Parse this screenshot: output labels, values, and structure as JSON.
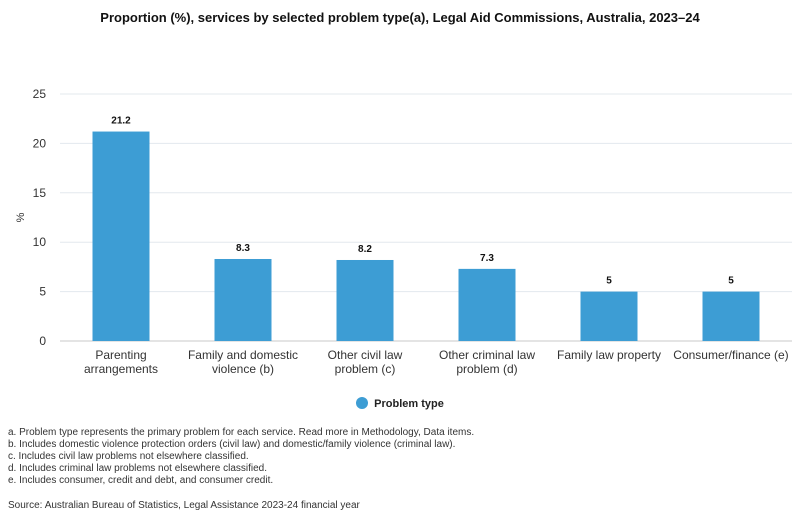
{
  "chart_data": {
    "type": "bar",
    "title": "Proportion (%), services by selected problem type(a), Legal Aid Commissions, Australia, 2023–24",
    "ylabel": "%",
    "xlabel": "",
    "ylim": [
      0,
      25
    ],
    "yticks": [
      0,
      5,
      10,
      15,
      20,
      25
    ],
    "grid": true,
    "legend_position": "bottom",
    "categories": [
      [
        "Parenting",
        "arrangements"
      ],
      [
        "Family and domestic",
        "violence (b)"
      ],
      [
        "Other civil law",
        "problem (c)"
      ],
      [
        "Other criminal law",
        "problem (d)"
      ],
      [
        "Family law property"
      ],
      [
        "Consumer/finance (e)"
      ]
    ],
    "series": [
      {
        "name": "Problem type",
        "color": "#3d9dd4",
        "values": [
          21.2,
          8.3,
          8.2,
          7.3,
          5,
          5
        ]
      }
    ],
    "data_labels": [
      "21.2",
      "8.3",
      "8.2",
      "7.3",
      "5",
      "5"
    ]
  },
  "notes": [
    "a. Problem type represents the primary problem for each service. Read more in Methodology, Data items.",
    "b. Includes domestic violence protection orders (civil law) and domestic/family violence (criminal law).",
    "c. Includes civil law problems not elsewhere classified.",
    "d. Includes criminal law problems not elsewhere classified.",
    "e. Includes consumer, credit and debt, and consumer credit."
  ],
  "source": "Source: Australian Bureau of Statistics, Legal Assistance 2023-24 financial year"
}
